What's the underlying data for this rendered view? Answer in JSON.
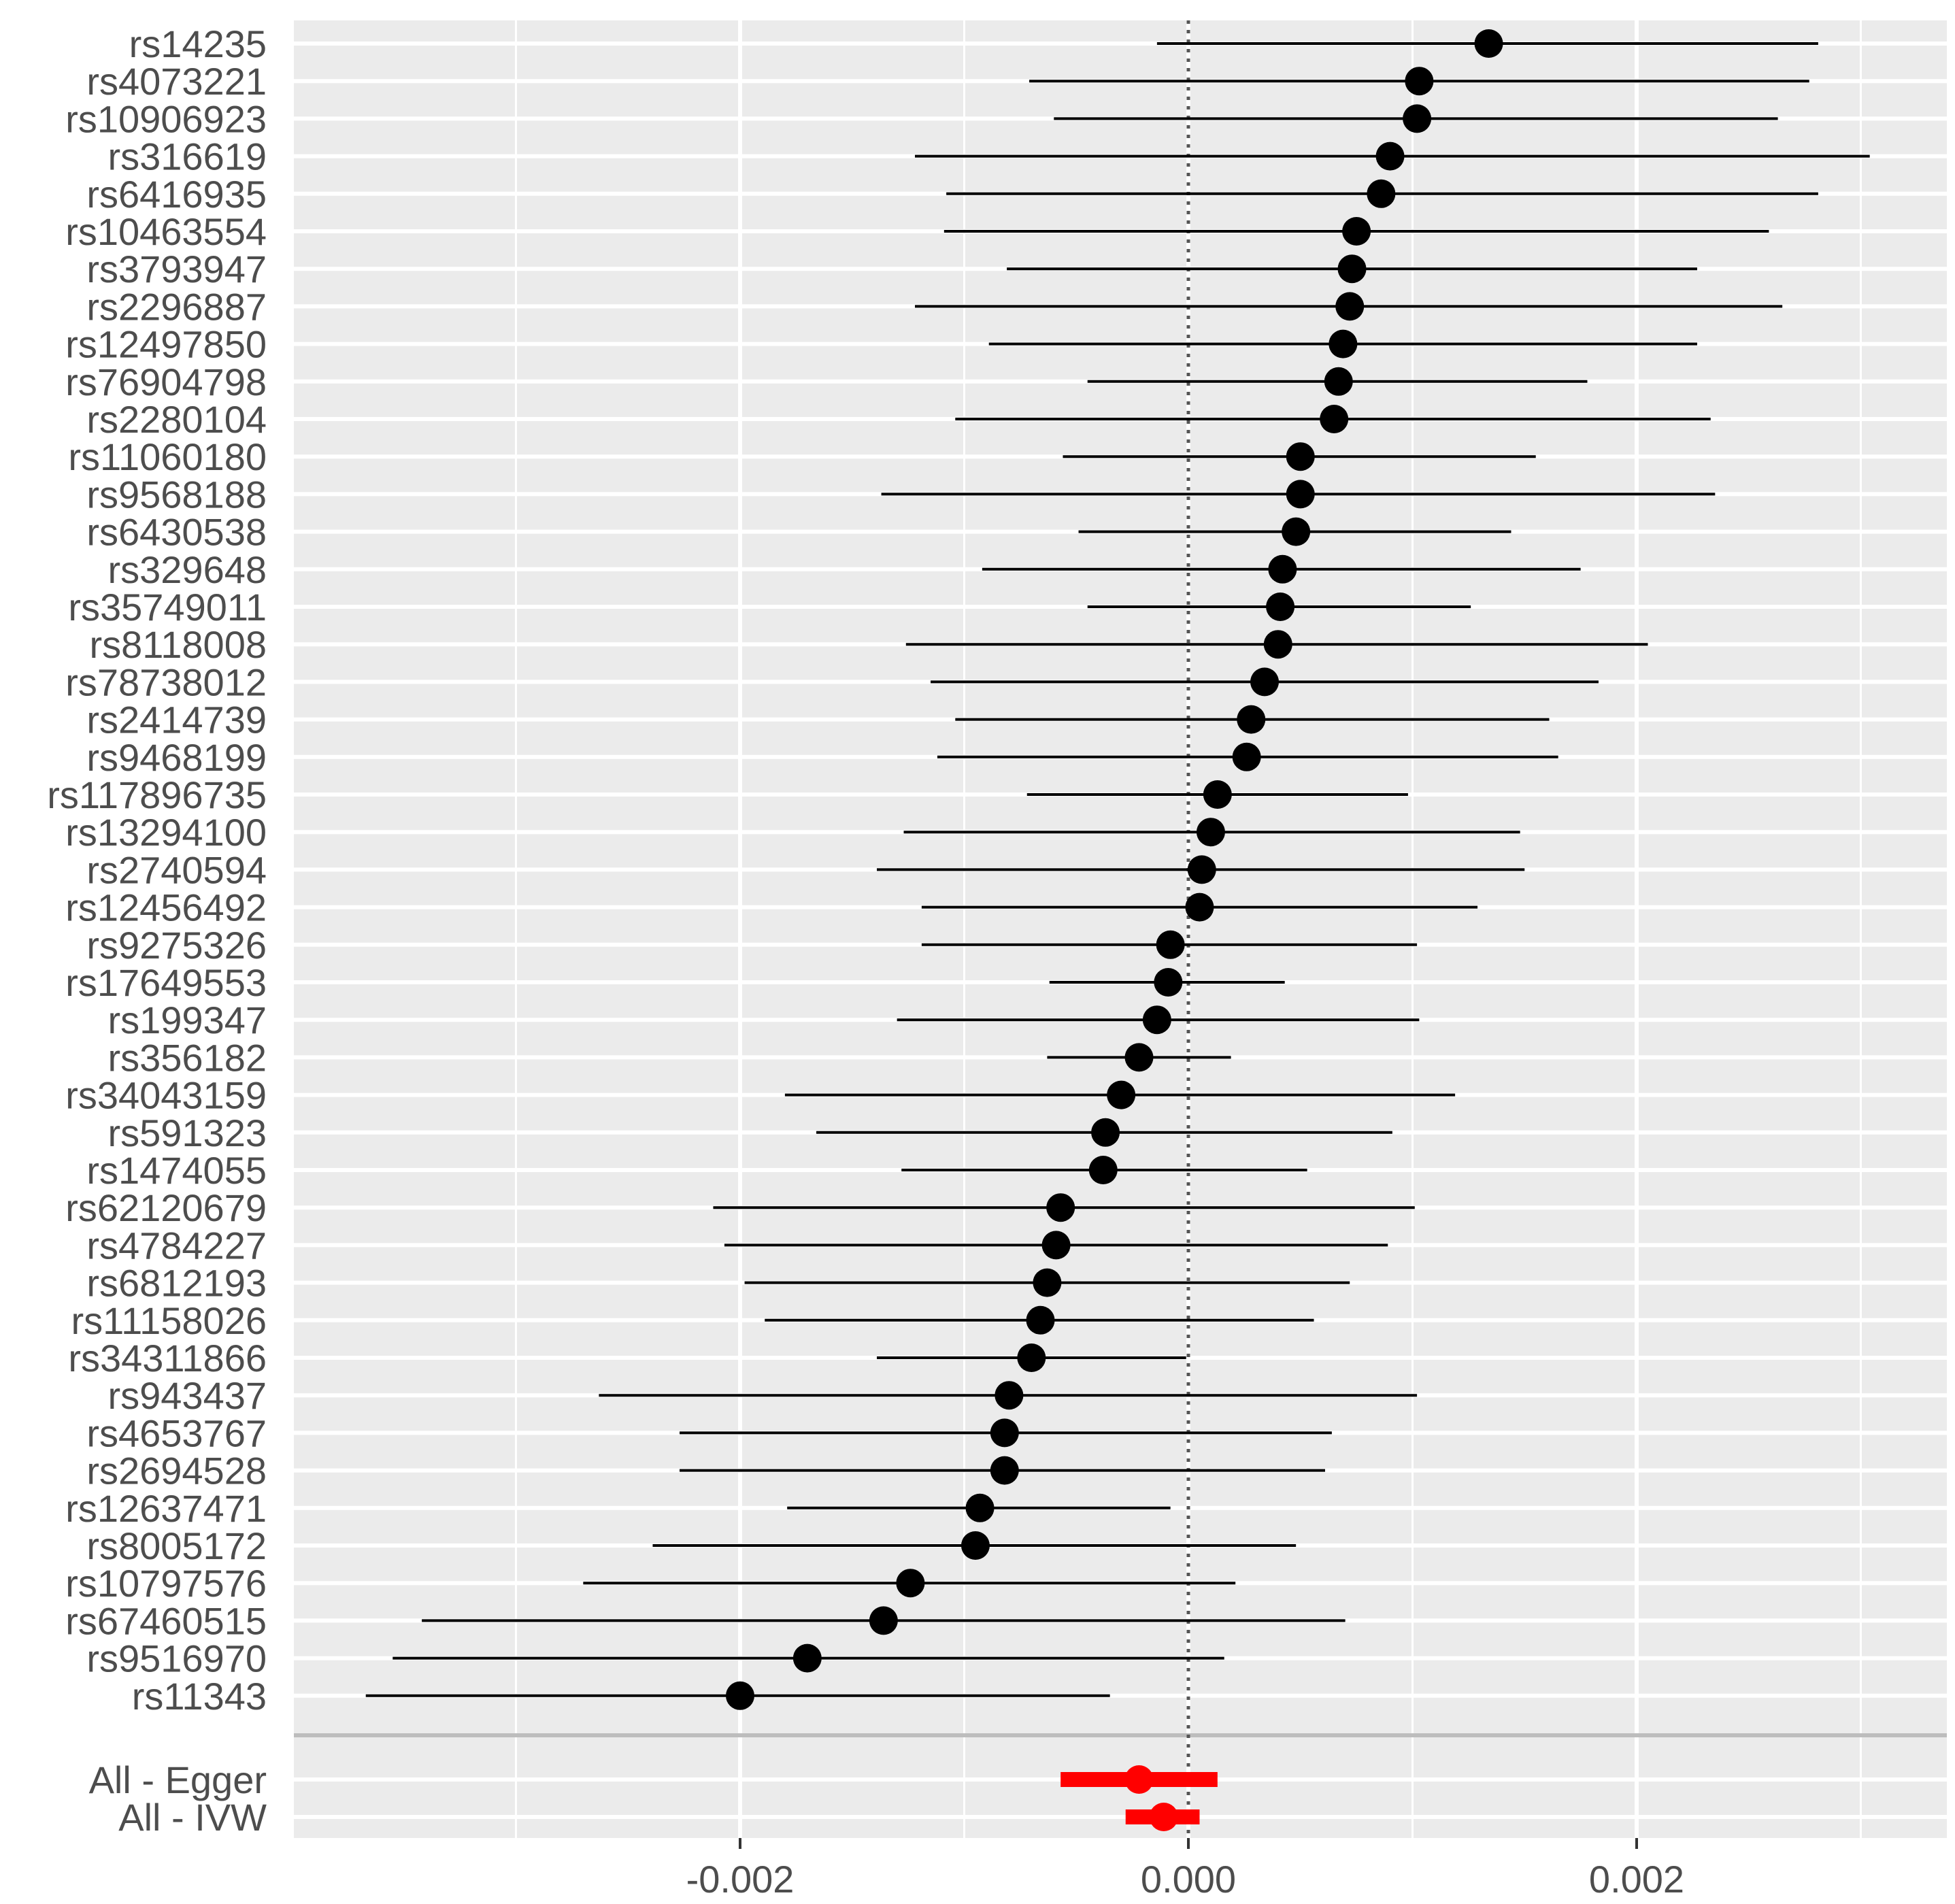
{
  "chart_data": {
    "type": "forest",
    "title": "",
    "xlabel": "",
    "ylabel": "",
    "x_ticks": [
      -0.002,
      0.0,
      0.002
    ],
    "x_tick_labels": [
      "-0.002",
      "0.000",
      "0.002"
    ],
    "xlim": [
      -0.004,
      0.0034
    ],
    "reference_line": 0.0,
    "grid": true,
    "snps": [
      {
        "label": "rs14235",
        "estimate": 0.00134,
        "lower": -0.00014,
        "upper": 0.00281
      },
      {
        "label": "rs4073221",
        "estimate": 0.00103,
        "lower": -0.00071,
        "upper": 0.00277
      },
      {
        "label": "rs10906923",
        "estimate": 0.00102,
        "lower": -0.0006,
        "upper": 0.00263
      },
      {
        "label": "rs316619",
        "estimate": 0.0009,
        "lower": -0.00122,
        "upper": 0.00304
      },
      {
        "label": "rs6416935",
        "estimate": 0.00086,
        "lower": -0.00108,
        "upper": 0.00281
      },
      {
        "label": "rs10463554",
        "estimate": 0.00075,
        "lower": -0.00109,
        "upper": 0.00259
      },
      {
        "label": "rs3793947",
        "estimate": 0.00073,
        "lower": -0.00081,
        "upper": 0.00227
      },
      {
        "label": "rs2296887",
        "estimate": 0.00072,
        "lower": -0.00122,
        "upper": 0.00265
      },
      {
        "label": "rs12497850",
        "estimate": 0.00069,
        "lower": -0.00089,
        "upper": 0.00227
      },
      {
        "label": "rs76904798",
        "estimate": 0.00067,
        "lower": -0.00045,
        "upper": 0.00178
      },
      {
        "label": "rs2280104",
        "estimate": 0.00065,
        "lower": -0.00104,
        "upper": 0.00233
      },
      {
        "label": "rs11060180",
        "estimate": 0.0005,
        "lower": -0.00056,
        "upper": 0.00155
      },
      {
        "label": "rs9568188",
        "estimate": 0.0005,
        "lower": -0.00137,
        "upper": 0.00235
      },
      {
        "label": "rs6430538",
        "estimate": 0.00048,
        "lower": -0.00049,
        "upper": 0.00144
      },
      {
        "label": "rs329648",
        "estimate": 0.00042,
        "lower": -0.00092,
        "upper": 0.00175
      },
      {
        "label": "rs35749011",
        "estimate": 0.00041,
        "lower": -0.00045,
        "upper": 0.00126
      },
      {
        "label": "rs8118008",
        "estimate": 0.0004,
        "lower": -0.00126,
        "upper": 0.00205
      },
      {
        "label": "rs78738012",
        "estimate": 0.00034,
        "lower": -0.00115,
        "upper": 0.00183
      },
      {
        "label": "rs2414739",
        "estimate": 0.00028,
        "lower": -0.00104,
        "upper": 0.00161
      },
      {
        "label": "rs9468199",
        "estimate": 0.00026,
        "lower": -0.00112,
        "upper": 0.00165
      },
      {
        "label": "rs117896735",
        "estimate": 0.00013,
        "lower": -0.00072,
        "upper": 0.00098
      },
      {
        "label": "rs13294100",
        "estimate": 0.0001,
        "lower": -0.00127,
        "upper": 0.00148
      },
      {
        "label": "rs2740594",
        "estimate": 6e-05,
        "lower": -0.00139,
        "upper": 0.0015
      },
      {
        "label": "rs12456492",
        "estimate": 5e-05,
        "lower": -0.00119,
        "upper": 0.00129
      },
      {
        "label": "rs9275326",
        "estimate": -8e-05,
        "lower": -0.00119,
        "upper": 0.00102
      },
      {
        "label": "rs17649553",
        "estimate": -9e-05,
        "lower": -0.00062,
        "upper": 0.00043
      },
      {
        "label": "rs199347",
        "estimate": -0.00014,
        "lower": -0.0013,
        "upper": 0.00103
      },
      {
        "label": "rs356182",
        "estimate": -0.00022,
        "lower": -0.00063,
        "upper": 0.00019
      },
      {
        "label": "rs34043159",
        "estimate": -0.0003,
        "lower": -0.0018,
        "upper": 0.00119
      },
      {
        "label": "rs591323",
        "estimate": -0.00037,
        "lower": -0.00166,
        "upper": 0.00091
      },
      {
        "label": "rs1474055",
        "estimate": -0.00038,
        "lower": -0.00128,
        "upper": 0.00053
      },
      {
        "label": "rs62120679",
        "estimate": -0.00057,
        "lower": -0.00212,
        "upper": 0.00101
      },
      {
        "label": "rs4784227",
        "estimate": -0.00059,
        "lower": -0.00207,
        "upper": 0.00089
      },
      {
        "label": "rs6812193",
        "estimate": -0.00063,
        "lower": -0.00198,
        "upper": 0.00072
      },
      {
        "label": "rs11158026",
        "estimate": -0.00066,
        "lower": -0.00189,
        "upper": 0.00056
      },
      {
        "label": "rs34311866",
        "estimate": -0.0007,
        "lower": -0.00139,
        "upper": -1e-05
      },
      {
        "label": "rs943437",
        "estimate": -0.0008,
        "lower": -0.00263,
        "upper": 0.00102
      },
      {
        "label": "rs4653767",
        "estimate": -0.00082,
        "lower": -0.00227,
        "upper": 0.00064
      },
      {
        "label": "rs2694528",
        "estimate": -0.00082,
        "lower": -0.00227,
        "upper": 0.00061
      },
      {
        "label": "rs12637471",
        "estimate": -0.00093,
        "lower": -0.00179,
        "upper": -8e-05
      },
      {
        "label": "rs8005172",
        "estimate": -0.00095,
        "lower": -0.00239,
        "upper": 0.00048
      },
      {
        "label": "rs10797576",
        "estimate": -0.00124,
        "lower": -0.0027,
        "upper": 0.00021
      },
      {
        "label": "rs67460515",
        "estimate": -0.00136,
        "lower": -0.00342,
        "upper": 0.0007
      },
      {
        "label": "rs9516970",
        "estimate": -0.0017,
        "lower": -0.00355,
        "upper": 0.00016
      },
      {
        "label": "rs11343",
        "estimate": -0.002,
        "lower": -0.00367,
        "upper": -0.00035
      }
    ],
    "summary": [
      {
        "label": "All - Egger",
        "estimate": -0.00022,
        "lower": -0.00057,
        "upper": 0.00013
      },
      {
        "label": "All - IVW",
        "estimate": -0.00011,
        "lower": -0.00028,
        "upper": 5e-05
      }
    ],
    "colors": {
      "panel_background": "#ebebeb",
      "grid": "#ffffff",
      "snp_point": "#000000",
      "summary_point": "#ff0000",
      "reference_line": "#555555",
      "separator": "#bdbdbd",
      "label_text": "#4d4d4d"
    }
  }
}
